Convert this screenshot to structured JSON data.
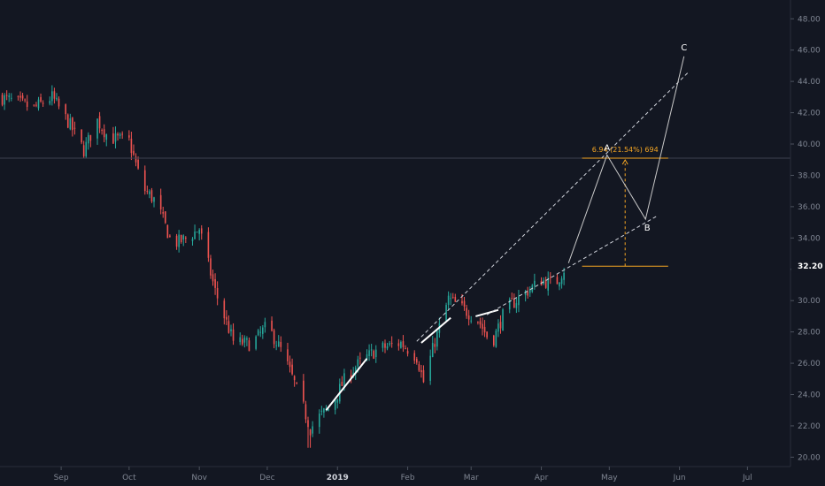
{
  "colors": {
    "background": "#131722",
    "up": "#26a69a",
    "down": "#ef5350",
    "axis_text": "#7f8592",
    "price_label_bg": "#131722",
    "projection": "#c9c9c9",
    "measure": "#f5a623",
    "trend_line": "#ffffff"
  },
  "chart_data": {
    "type": "candlestick",
    "title": "",
    "xlabel": "",
    "ylabel": "",
    "ylim": [
      19.4,
      49.2
    ],
    "grid": false,
    "y_ticks": [
      20,
      22,
      24,
      26,
      28,
      30,
      32,
      34,
      36,
      38,
      40,
      42,
      44,
      46,
      48
    ],
    "x_ticks": [
      {
        "label": "Sep",
        "day": 12,
        "bold": false
      },
      {
        "label": "Oct",
        "day": 42,
        "bold": false
      },
      {
        "label": "Nov",
        "day": 73,
        "bold": false
      },
      {
        "label": "Dec",
        "day": 103,
        "bold": false
      },
      {
        "label": "2019",
        "day": 134,
        "bold": true
      },
      {
        "label": "Feb",
        "day": 165,
        "bold": false
      },
      {
        "label": "Mar",
        "day": 193,
        "bold": false
      },
      {
        "label": "Apr",
        "day": 224,
        "bold": false
      },
      {
        "label": "May",
        "day": 254,
        "bold": false
      },
      {
        "label": "Jun",
        "day": 285,
        "bold": false
      },
      {
        "label": "Jul",
        "day": 315,
        "bold": false
      }
    ],
    "x_range_days": [
      -15,
      334
    ],
    "last_price": {
      "label": "32.20",
      "value": 32.2
    },
    "anchors": [
      {
        "day": -15,
        "price": 43.0
      },
      {
        "day": 0,
        "price": 42.3
      },
      {
        "day": 8,
        "price": 43.0
      },
      {
        "day": 16,
        "price": 41.2
      },
      {
        "day": 22,
        "price": 39.6
      },
      {
        "day": 28,
        "price": 41.5
      },
      {
        "day": 33,
        "price": 40.4
      },
      {
        "day": 42,
        "price": 40.2
      },
      {
        "day": 48,
        "price": 37.2
      },
      {
        "day": 54,
        "price": 36.3
      },
      {
        "day": 61,
        "price": 33.6
      },
      {
        "day": 68,
        "price": 34.0
      },
      {
        "day": 73,
        "price": 34.6
      },
      {
        "day": 80,
        "price": 30.6
      },
      {
        "day": 88,
        "price": 27.4
      },
      {
        "day": 96,
        "price": 27.2
      },
      {
        "day": 103,
        "price": 28.4
      },
      {
        "day": 110,
        "price": 26.6
      },
      {
        "day": 118,
        "price": 23.6
      },
      {
        "day": 122,
        "price": 21.8
      },
      {
        "day": 126,
        "price": 22.6
      },
      {
        "day": 131,
        "price": 23.2
      },
      {
        "day": 138,
        "price": 25.2
      },
      {
        "day": 145,
        "price": 26.2
      },
      {
        "day": 152,
        "price": 26.9
      },
      {
        "day": 162,
        "price": 27.3
      },
      {
        "day": 169,
        "price": 26.4
      },
      {
        "day": 172,
        "price": 24.8
      },
      {
        "day": 177,
        "price": 27.4
      },
      {
        "day": 183,
        "price": 30.1
      },
      {
        "day": 190,
        "price": 29.4
      },
      {
        "day": 196,
        "price": 28.8
      },
      {
        "day": 202,
        "price": 27.2
      },
      {
        "day": 208,
        "price": 29.4
      },
      {
        "day": 216,
        "price": 30.4
      },
      {
        "day": 224,
        "price": 31.3
      },
      {
        "day": 230,
        "price": 31.0
      },
      {
        "day": 234,
        "price": 32.0
      }
    ],
    "trend_segments": [
      {
        "x1": 129,
        "y1": 23.0,
        "x2": 147,
        "y2": 26.3
      },
      {
        "x1": 171,
        "y1": 27.3,
        "x2": 184,
        "y2": 28.9
      },
      {
        "x1": 195,
        "y1": 29.0,
        "x2": 205,
        "y2": 29.4
      }
    ],
    "projection": {
      "points": [
        {
          "label": "",
          "day": 236,
          "price": 32.4
        },
        {
          "label": "A",
          "day": 253,
          "price": 39.3
        },
        {
          "label": "B",
          "day": 270,
          "price": 35.2
        },
        {
          "label": "C",
          "day": 287,
          "price": 45.6
        }
      ]
    },
    "channel_lines": [
      {
        "x1": 169,
        "y1": 27.4,
        "x2": 289,
        "y2": 44.6
      },
      {
        "x1": 200,
        "y1": 29.1,
        "x2": 275,
        "y2": 35.4
      }
    ],
    "measure": {
      "day_from": 242,
      "day_to": 280,
      "price_low": 32.2,
      "price_high": 39.1,
      "label": "6.94 (21.54%) 694"
    },
    "horizontal_line": {
      "price": 39.1
    }
  }
}
